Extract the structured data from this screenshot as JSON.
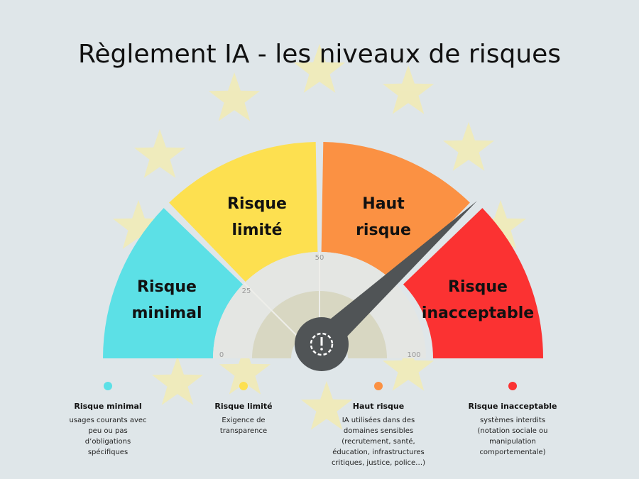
{
  "title": "Règlement IA - les niveaux de risques",
  "scale": [
    "0",
    "25",
    "50",
    "100"
  ],
  "segments": [
    {
      "lines": [
        "Risque",
        "minimal"
      ]
    },
    {
      "lines": [
        "Risque",
        "limité"
      ]
    },
    {
      "lines": [
        "Haut",
        "risque"
      ]
    },
    {
      "lines": [
        "Risque",
        "inacceptable"
      ]
    }
  ],
  "legend": [
    {
      "title": "Risque minimal",
      "description": [
        "usages courants avec",
        "peu ou pas",
        "d’obligations",
        "spécifiques"
      ]
    },
    {
      "title": "Risque limité",
      "description": [
        "Exigence de",
        "transparence"
      ]
    },
    {
      "title": "Haut risque",
      "description": [
        "IA utilisées dans des",
        "domaines sensibles",
        "(recrutement, santé,",
        "éducation, infrastructures",
        "critiques, justice, police…)"
      ]
    },
    {
      "title": "Risque inacceptable",
      "description": [
        "systèmes interdits",
        "(notation sociale ou",
        "manipulation",
        "comportementale)"
      ]
    }
  ]
}
